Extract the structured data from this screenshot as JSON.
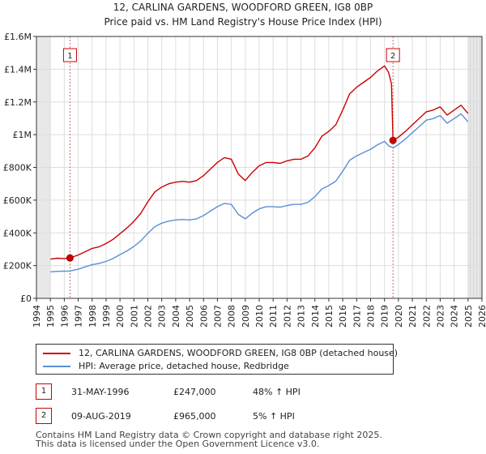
{
  "chart_data": {
    "type": "line",
    "title": "12, CARLINA GARDENS, WOODFORD GREEN, IG8 0BP",
    "subtitle": "Price paid vs. HM Land Registry's House Price Index (HPI)",
    "xlim": [
      1994,
      2026
    ],
    "ylim": [
      0,
      1600000
    ],
    "x_ticks": [
      1994,
      1995,
      1996,
      1997,
      1998,
      1999,
      2000,
      2001,
      2002,
      2003,
      2004,
      2005,
      2006,
      2007,
      2008,
      2009,
      2010,
      2011,
      2012,
      2013,
      2014,
      2015,
      2016,
      2017,
      2018,
      2019,
      2020,
      2021,
      2022,
      2023,
      2024,
      2025,
      2026
    ],
    "y_ticks": [
      {
        "value": 0,
        "label": "£0"
      },
      {
        "value": 200000,
        "label": "£200K"
      },
      {
        "value": 400000,
        "label": "£400K"
      },
      {
        "value": 600000,
        "label": "£600K"
      },
      {
        "value": 800000,
        "label": "£800K"
      },
      {
        "value": 1000000,
        "label": "£1M"
      },
      {
        "value": 1200000,
        "label": "£1.2M"
      },
      {
        "value": 1400000,
        "label": "£1.4M"
      },
      {
        "value": 1600000,
        "label": "£1.6M"
      }
    ],
    "grid": true,
    "shaded_ranges": [
      [
        1994,
        1995
      ],
      [
        2025,
        2026
      ]
    ],
    "series": [
      {
        "name": "12, CARLINA GARDENS, WOODFORD GREEN, IG8 0BP (detached house)",
        "color": "#cc0000",
        "x": [
          1995.0,
          1995.5,
          1996.0,
          1996.41,
          1997.0,
          1997.5,
          1998.0,
          1998.5,
          1999.0,
          1999.5,
          2000.0,
          2000.5,
          2001.0,
          2001.5,
          2002.0,
          2002.5,
          2003.0,
          2003.5,
          2004.0,
          2004.5,
          2005.0,
          2005.5,
          2006.0,
          2006.5,
          2007.0,
          2007.5,
          2008.0,
          2008.5,
          2009.0,
          2009.5,
          2010.0,
          2010.5,
          2011.0,
          2011.5,
          2012.0,
          2012.5,
          2013.0,
          2013.5,
          2014.0,
          2014.5,
          2015.0,
          2015.5,
          2016.0,
          2016.5,
          2017.0,
          2017.5,
          2018.0,
          2018.5,
          2019.0,
          2019.3,
          2019.5,
          2019.61,
          2020.0,
          2020.5,
          2021.0,
          2021.5,
          2022.0,
          2022.5,
          2023.0,
          2023.5,
          2024.0,
          2024.5,
          2025.0
        ],
        "values": [
          240000,
          245000,
          243000,
          247000,
          265000,
          285000,
          305000,
          315000,
          335000,
          360000,
          395000,
          430000,
          470000,
          520000,
          590000,
          650000,
          680000,
          700000,
          710000,
          715000,
          710000,
          720000,
          750000,
          790000,
          830000,
          860000,
          850000,
          760000,
          720000,
          770000,
          810000,
          830000,
          830000,
          825000,
          840000,
          850000,
          850000,
          870000,
          920000,
          990000,
          1020000,
          1060000,
          1150000,
          1250000,
          1290000,
          1320000,
          1350000,
          1390000,
          1420000,
          1380000,
          1310000,
          965000,
          985000,
          1020000,
          1060000,
          1100000,
          1140000,
          1150000,
          1170000,
          1120000,
          1150000,
          1180000,
          1130000
        ]
      },
      {
        "name": "HPI: Average price, detached house, Redbridge",
        "color": "#5b8fd4",
        "x": [
          1995.0,
          1995.5,
          1996.0,
          1996.41,
          1997.0,
          1997.5,
          1998.0,
          1998.5,
          1999.0,
          1999.5,
          2000.0,
          2000.5,
          2001.0,
          2001.5,
          2002.0,
          2002.5,
          2003.0,
          2003.5,
          2004.0,
          2004.5,
          2005.0,
          2005.5,
          2006.0,
          2006.5,
          2007.0,
          2007.5,
          2008.0,
          2008.5,
          2009.0,
          2009.5,
          2010.0,
          2010.5,
          2011.0,
          2011.5,
          2012.0,
          2012.5,
          2013.0,
          2013.5,
          2014.0,
          2014.5,
          2015.0,
          2015.5,
          2016.0,
          2016.5,
          2017.0,
          2017.5,
          2018.0,
          2018.5,
          2019.0,
          2019.3,
          2019.5,
          2019.61,
          2020.0,
          2020.5,
          2021.0,
          2021.5,
          2022.0,
          2022.5,
          2023.0,
          2023.5,
          2024.0,
          2024.5,
          2025.0
        ],
        "values": [
          162000,
          165000,
          166000,
          167000,
          178000,
          192000,
          206000,
          213000,
          226000,
          243000,
          267000,
          290000,
          317000,
          351000,
          398000,
          438000,
          459000,
          472000,
          479000,
          482000,
          479000,
          486000,
          506000,
          533000,
          560000,
          580000,
          574000,
          513000,
          486000,
          520000,
          547000,
          560000,
          560000,
          557000,
          567000,
          574000,
          574000,
          587000,
          621000,
          668000,
          689000,
          716000,
          776000,
          844000,
          871000,
          891000,
          911000,
          938000,
          959000,
          932000,
          925000,
          919000,
          940000,
          974000,
          1012000,
          1050000,
          1089000,
          1098000,
          1117000,
          1070000,
          1098000,
          1127000,
          1079000
        ]
      }
    ],
    "annotations": [
      {
        "id": "1",
        "x": 1996.41,
        "y": 247000
      },
      {
        "id": "2",
        "x": 2019.61,
        "y": 965000
      }
    ]
  },
  "legend": {
    "items": [
      {
        "label": "12, CARLINA GARDENS, WOODFORD GREEN, IG8 0BP (detached house)",
        "color": "#cc0000"
      },
      {
        "label": "HPI: Average price, detached house, Redbridge",
        "color": "#5b8fd4"
      }
    ]
  },
  "sales": [
    {
      "num": "1",
      "date": "31-MAY-1996",
      "price": "£247,000",
      "hpi": "48% ↑ HPI"
    },
    {
      "num": "2",
      "date": "09-AUG-2019",
      "price": "£965,000",
      "hpi": "5% ↑ HPI"
    }
  ],
  "footer": {
    "line1": "Contains HM Land Registry data © Crown copyright and database right 2025.",
    "line2": "This data is licensed under the Open Government Licence v3.0."
  }
}
